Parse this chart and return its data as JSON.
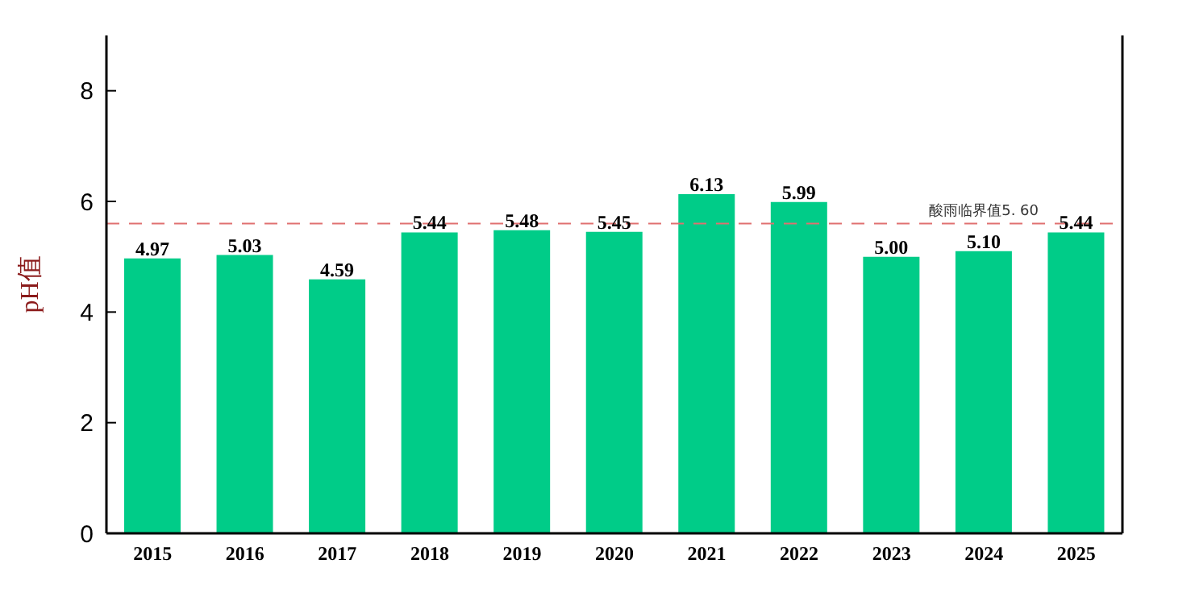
{
  "chart_data": {
    "type": "bar",
    "ylabel": "pH值",
    "categories": [
      "2015",
      "2016",
      "2017",
      "2018",
      "2019",
      "2020",
      "2021",
      "2022",
      "2023",
      "2024",
      "2025"
    ],
    "values": [
      4.97,
      5.03,
      4.59,
      5.44,
      5.48,
      5.45,
      6.13,
      5.99,
      5.0,
      5.1,
      5.44
    ],
    "value_labels": [
      "4.97",
      "5.03",
      "4.59",
      "5.44",
      "5.48",
      "5.45",
      "6.13",
      "5.99",
      "5.00",
      "5.10",
      "5.44"
    ],
    "color": "#00cc88",
    "ylim": [
      0,
      9
    ],
    "yticks": [
      0,
      2,
      4,
      6,
      8
    ],
    "grid": false,
    "legend": false,
    "ref_lines": [
      {
        "axis": "y",
        "value": 5.6,
        "label": "酸雨临界值5. 60",
        "color": "#e07070",
        "line_style": "dashed"
      }
    ]
  }
}
